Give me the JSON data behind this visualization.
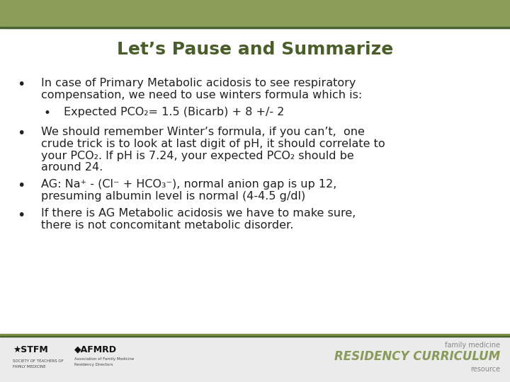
{
  "title": "Let’s Pause and Summarize",
  "title_color": "#4a5e2a",
  "title_fontsize": 18,
  "background_color": "#ffffff",
  "top_bar_color": "#8a9e5a",
  "top_bar_bottom_color": "#4a6030",
  "separator_color": "#4a6030",
  "bullet_color": "#222222",
  "bullet_fontsize": 11.5,
  "footer_bar_color": "#7a8f45",
  "footer_bg_color": "#e8e8e8",
  "footer_right_text1": "family medicine",
  "footer_right_text2": "RESIDENCY CURRICULUM",
  "footer_right_text3": "resource"
}
